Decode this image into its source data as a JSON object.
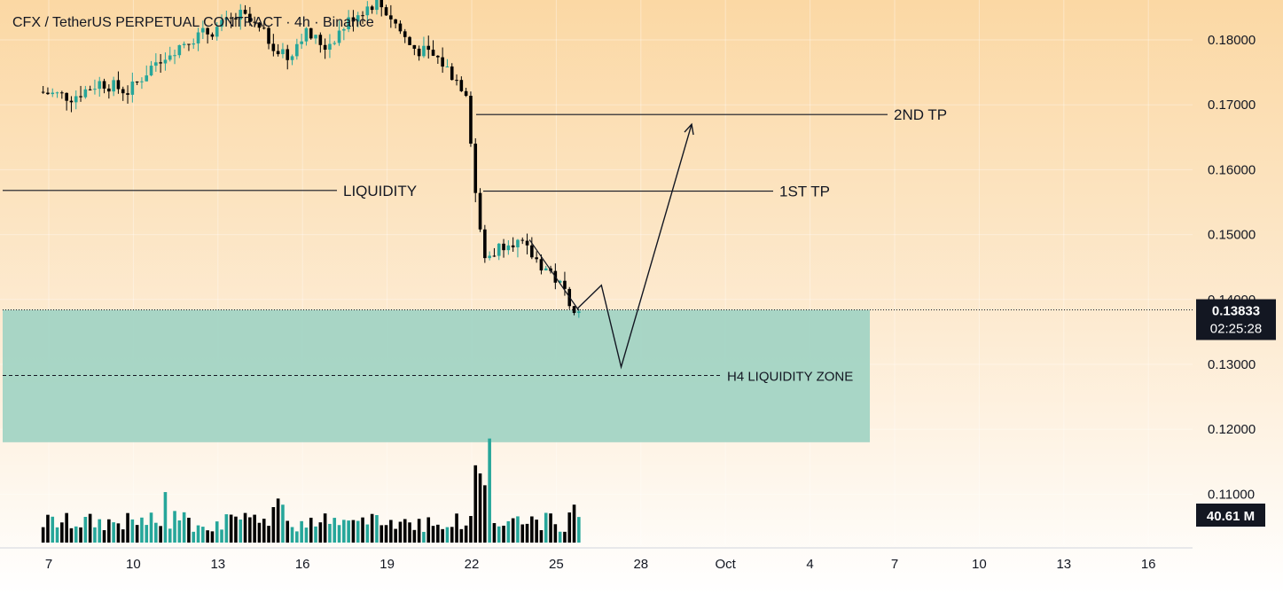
{
  "chart_data": {
    "type": "candlestick",
    "title": "CFX / TetherUS PERPETUAL CONTRACT · 4h · Binance",
    "y_ticks": [
      "0.18000",
      "0.17000",
      "0.16000",
      "0.15000",
      "0.14000",
      "0.13000",
      "0.12000",
      "0.11000"
    ],
    "x_ticks": [
      "7",
      "10",
      "13",
      "16",
      "19",
      "22",
      "25",
      "28",
      "Oct",
      "4",
      "7",
      "10",
      "13",
      "16"
    ],
    "ylim": [
      0.1005,
      0.186
    ],
    "last_price": "0.13833",
    "countdown": "02:25:28",
    "volume_label": "40.61 M",
    "annotations": {
      "liquidity": "LIQUIDITY",
      "first_tp": "1ST TP",
      "second_tp": "2ND TP",
      "zone": "H4 LIQUIDITY ZONE"
    },
    "levels": {
      "liquidity": 0.1568,
      "first_tp": 0.1567,
      "second_tp": 0.1685,
      "zone_top": 0.1384,
      "zone_mid": 0.1283,
      "zone_bottom": 0.118
    },
    "projection_path": [
      {
        "date": "25.75",
        "price": 0.1386
      },
      {
        "date": "26.6",
        "price": 0.1422
      },
      {
        "date": "27.3",
        "price": 0.1296
      },
      {
        "date": "29.8",
        "price": 0.167
      }
    ],
    "colors": {
      "up": "#26a69a",
      "down": "#000000",
      "zone": "#a3d4c4",
      "bg_top": "#fbd8a4",
      "bg_bottom": "#ffffff"
    }
  }
}
